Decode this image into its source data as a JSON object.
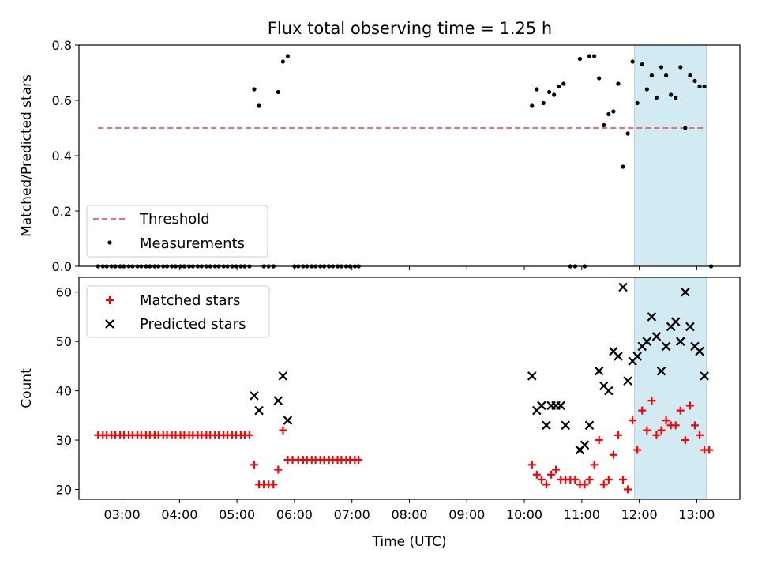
{
  "title": "Flux total observing time = 1.25 h",
  "colors": {
    "threshold": "#f07070",
    "measurement": "#000000",
    "matched": "#ff0000",
    "predicted": "#000000",
    "shade": "#add8e6"
  },
  "chart_data": [
    {
      "type": "scatter",
      "name": "ratio",
      "ylabel": "Matched/Predicted stars",
      "xlabel": "",
      "xlim": [
        "02:15",
        "13:45"
      ],
      "ylim": [
        0,
        0.8
      ],
      "yticks": [
        "0.0",
        "0.2",
        "0.4",
        "0.6",
        "0.8"
      ],
      "shaded_interval": [
        "11:55",
        "13:10"
      ],
      "threshold": {
        "value": 0.5,
        "x": [
          "02:35",
          "13:10"
        ],
        "style": "dashed"
      },
      "legend": {
        "position": "lower-left",
        "entries": [
          "Threshold",
          "Measurements"
        ]
      },
      "series": [
        {
          "name": "Measurements",
          "marker": "dot",
          "points": [
            [
              "02:35",
              0
            ],
            [
              "02:40",
              0
            ],
            [
              "02:44",
              0
            ],
            [
              "02:49",
              0
            ],
            [
              "02:53",
              0
            ],
            [
              "02:58",
              0
            ],
            [
              "03:02",
              0
            ],
            [
              "03:07",
              0
            ],
            [
              "03:11",
              0
            ],
            [
              "03:16",
              0
            ],
            [
              "03:20",
              0
            ],
            [
              "03:25",
              0
            ],
            [
              "03:29",
              0
            ],
            [
              "03:34",
              0
            ],
            [
              "03:38",
              0
            ],
            [
              "03:43",
              0
            ],
            [
              "03:47",
              0
            ],
            [
              "03:52",
              0
            ],
            [
              "03:56",
              0
            ],
            [
              "04:01",
              0
            ],
            [
              "04:05",
              0
            ],
            [
              "04:10",
              0
            ],
            [
              "04:14",
              0
            ],
            [
              "04:19",
              0
            ],
            [
              "04:23",
              0
            ],
            [
              "04:28",
              0
            ],
            [
              "04:32",
              0
            ],
            [
              "04:37",
              0
            ],
            [
              "04:41",
              0
            ],
            [
              "04:46",
              0
            ],
            [
              "04:50",
              0
            ],
            [
              "04:55",
              0
            ],
            [
              "04:59",
              0
            ],
            [
              "05:04",
              0
            ],
            [
              "05:08",
              0
            ],
            [
              "05:13",
              0
            ],
            [
              "05:18",
              0.64
            ],
            [
              "05:23",
              0.58
            ],
            [
              "05:28",
              0
            ],
            [
              "05:33",
              0
            ],
            [
              "05:38",
              0
            ],
            [
              "05:43",
              0.63
            ],
            [
              "05:48",
              0.74
            ],
            [
              "05:53",
              0.76
            ],
            [
              "06:00",
              0
            ],
            [
              "06:04",
              0
            ],
            [
              "06:09",
              0
            ],
            [
              "06:13",
              0
            ],
            [
              "06:18",
              0
            ],
            [
              "06:22",
              0
            ],
            [
              "06:27",
              0
            ],
            [
              "06:31",
              0
            ],
            [
              "06:36",
              0
            ],
            [
              "06:40",
              0
            ],
            [
              "06:45",
              0
            ],
            [
              "06:49",
              0
            ],
            [
              "06:54",
              0
            ],
            [
              "06:58",
              0
            ],
            [
              "07:03",
              0
            ],
            [
              "07:07",
              0
            ],
            [
              "10:08",
              0.58
            ],
            [
              "10:13",
              0.64
            ],
            [
              "10:20",
              0.59
            ],
            [
              "10:26",
              0.63
            ],
            [
              "10:31",
              0.62
            ],
            [
              "10:36",
              0.65
            ],
            [
              "10:41",
              0.66
            ],
            [
              "10:48",
              0
            ],
            [
              "10:53",
              0
            ],
            [
              "10:58",
              0.75
            ],
            [
              "11:03",
              0
            ],
            [
              "11:08",
              0.76
            ],
            [
              "11:13",
              0.76
            ],
            [
              "11:18",
              0.68
            ],
            [
              "11:23",
              0.51
            ],
            [
              "11:28",
              0.55
            ],
            [
              "11:33",
              0.56
            ],
            [
              "11:38",
              0.66
            ],
            [
              "11:43",
              0.36
            ],
            [
              "11:48",
              0.48
            ],
            [
              "11:53",
              0.74
            ],
            [
              "11:58",
              0.59
            ],
            [
              "12:03",
              0.73
            ],
            [
              "12:08",
              0.64
            ],
            [
              "12:13",
              0.69
            ],
            [
              "12:18",
              0.61
            ],
            [
              "12:23",
              0.72
            ],
            [
              "12:28",
              0.69
            ],
            [
              "12:33",
              0.62
            ],
            [
              "12:38",
              0.61
            ],
            [
              "12:43",
              0.72
            ],
            [
              "12:48",
              0.5
            ],
            [
              "12:53",
              0.69
            ],
            [
              "12:58",
              0.67
            ],
            [
              "13:03",
              0.65
            ],
            [
              "13:08",
              0.65
            ],
            [
              "13:15",
              0
            ]
          ]
        }
      ]
    },
    {
      "type": "scatter",
      "name": "counts",
      "ylabel": "Count",
      "xlabel": "Time (UTC)",
      "xlim": [
        "02:15",
        "13:45"
      ],
      "ylim": [
        18,
        63
      ],
      "yticks": [
        "20",
        "30",
        "40",
        "50",
        "60"
      ],
      "xticks": [
        "03:00",
        "04:00",
        "05:00",
        "06:00",
        "07:00",
        "08:00",
        "09:00",
        "10:00",
        "11:00",
        "12:00",
        "13:00"
      ],
      "shaded_interval": [
        "11:55",
        "13:10"
      ],
      "legend": {
        "position": "upper-left",
        "entries": [
          "Matched stars",
          "Predicted stars"
        ]
      },
      "series": [
        {
          "name": "Matched stars",
          "marker": "plus",
          "points": [
            [
              "02:35",
              31
            ],
            [
              "02:40",
              31
            ],
            [
              "02:44",
              31
            ],
            [
              "02:49",
              31
            ],
            [
              "02:53",
              31
            ],
            [
              "02:58",
              31
            ],
            [
              "03:02",
              31
            ],
            [
              "03:07",
              31
            ],
            [
              "03:11",
              31
            ],
            [
              "03:16",
              31
            ],
            [
              "03:20",
              31
            ],
            [
              "03:25",
              31
            ],
            [
              "03:29",
              31
            ],
            [
              "03:34",
              31
            ],
            [
              "03:38",
              31
            ],
            [
              "03:43",
              31
            ],
            [
              "03:47",
              31
            ],
            [
              "03:52",
              31
            ],
            [
              "03:56",
              31
            ],
            [
              "04:01",
              31
            ],
            [
              "04:05",
              31
            ],
            [
              "04:10",
              31
            ],
            [
              "04:14",
              31
            ],
            [
              "04:19",
              31
            ],
            [
              "04:23",
              31
            ],
            [
              "04:28",
              31
            ],
            [
              "04:32",
              31
            ],
            [
              "04:37",
              31
            ],
            [
              "04:41",
              31
            ],
            [
              "04:46",
              31
            ],
            [
              "04:50",
              31
            ],
            [
              "04:55",
              31
            ],
            [
              "04:59",
              31
            ],
            [
              "05:04",
              31
            ],
            [
              "05:08",
              31
            ],
            [
              "05:13",
              31
            ],
            [
              "05:18",
              25
            ],
            [
              "05:23",
              21
            ],
            [
              "05:28",
              21
            ],
            [
              "05:33",
              21
            ],
            [
              "05:38",
              21
            ],
            [
              "05:43",
              24
            ],
            [
              "05:48",
              32
            ],
            [
              "05:53",
              26
            ],
            [
              "05:58",
              26
            ],
            [
              "06:04",
              26
            ],
            [
              "06:09",
              26
            ],
            [
              "06:13",
              26
            ],
            [
              "06:18",
              26
            ],
            [
              "06:22",
              26
            ],
            [
              "06:27",
              26
            ],
            [
              "06:31",
              26
            ],
            [
              "06:36",
              26
            ],
            [
              "06:40",
              26
            ],
            [
              "06:45",
              26
            ],
            [
              "06:49",
              26
            ],
            [
              "06:54",
              26
            ],
            [
              "06:58",
              26
            ],
            [
              "07:03",
              26
            ],
            [
              "07:07",
              26
            ],
            [
              "10:08",
              25
            ],
            [
              "10:13",
              23
            ],
            [
              "10:18",
              22
            ],
            [
              "10:23",
              21
            ],
            [
              "10:28",
              23
            ],
            [
              "10:33",
              24
            ],
            [
              "10:38",
              22
            ],
            [
              "10:43",
              22
            ],
            [
              "10:48",
              22
            ],
            [
              "10:53",
              22
            ],
            [
              "10:58",
              21
            ],
            [
              "11:03",
              21
            ],
            [
              "11:08",
              22
            ],
            [
              "11:13",
              25
            ],
            [
              "11:18",
              30
            ],
            [
              "11:23",
              21
            ],
            [
              "11:28",
              22
            ],
            [
              "11:33",
              27
            ],
            [
              "11:38",
              31
            ],
            [
              "11:43",
              22
            ],
            [
              "11:48",
              20
            ],
            [
              "11:53",
              34
            ],
            [
              "11:58",
              28
            ],
            [
              "12:03",
              36
            ],
            [
              "12:08",
              32
            ],
            [
              "12:13",
              38
            ],
            [
              "12:18",
              31
            ],
            [
              "12:23",
              32
            ],
            [
              "12:28",
              34
            ],
            [
              "12:33",
              33
            ],
            [
              "12:38",
              33
            ],
            [
              "12:43",
              36
            ],
            [
              "12:48",
              30
            ],
            [
              "12:53",
              37
            ],
            [
              "12:58",
              33
            ],
            [
              "13:03",
              31
            ],
            [
              "13:08",
              28
            ],
            [
              "13:13",
              28
            ]
          ]
        },
        {
          "name": "Predicted stars",
          "marker": "cross",
          "points": [
            [
              "05:18",
              39
            ],
            [
              "05:23",
              36
            ],
            [
              "05:43",
              38
            ],
            [
              "05:48",
              43
            ],
            [
              "05:53",
              34
            ],
            [
              "10:08",
              43
            ],
            [
              "10:13",
              36
            ],
            [
              "10:18",
              37
            ],
            [
              "10:23",
              33
            ],
            [
              "10:28",
              37
            ],
            [
              "10:33",
              37
            ],
            [
              "10:38",
              37
            ],
            [
              "10:43",
              33
            ],
            [
              "10:58",
              28
            ],
            [
              "11:03",
              29
            ],
            [
              "11:08",
              33
            ],
            [
              "11:18",
              44
            ],
            [
              "11:23",
              41
            ],
            [
              "11:28",
              40
            ],
            [
              "11:33",
              48
            ],
            [
              "11:38",
              47
            ],
            [
              "11:43",
              61
            ],
            [
              "11:48",
              42
            ],
            [
              "11:53",
              46
            ],
            [
              "11:58",
              47
            ],
            [
              "12:03",
              49
            ],
            [
              "12:08",
              50
            ],
            [
              "12:13",
              55
            ],
            [
              "12:18",
              51
            ],
            [
              "12:23",
              44
            ],
            [
              "12:28",
              49
            ],
            [
              "12:33",
              53
            ],
            [
              "12:38",
              54
            ],
            [
              "12:43",
              50
            ],
            [
              "12:48",
              60
            ],
            [
              "12:53",
              53
            ],
            [
              "12:58",
              49
            ],
            [
              "13:03",
              48
            ],
            [
              "13:08",
              43
            ]
          ]
        }
      ]
    }
  ]
}
